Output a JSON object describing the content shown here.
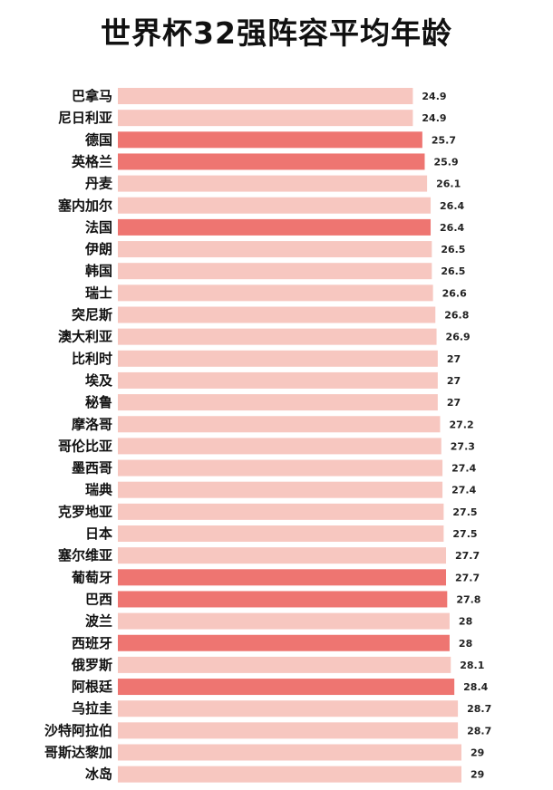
{
  "chart_data": {
    "type": "bar",
    "orientation": "horizontal",
    "title": "世界杯32强阵容平均年龄",
    "xlabel": "",
    "ylabel": "",
    "xlim": [
      0,
      29
    ],
    "grid": false,
    "colors": {
      "normal": "#f7c7c0",
      "highlight": "#ee7571"
    },
    "categories": [
      "巴拿马",
      "尼日利亚",
      "德国",
      "英格兰",
      "丹麦",
      "塞内加尔",
      "法国",
      "伊朗",
      "韩国",
      "瑞士",
      "突尼斯",
      "澳大利亚",
      "比利时",
      "埃及",
      "秘鲁",
      "摩洛哥",
      "哥伦比亚",
      "墨西哥",
      "瑞典",
      "克罗地亚",
      "日本",
      "塞尔维亚",
      "葡萄牙",
      "巴西",
      "波兰",
      "西班牙",
      "俄罗斯",
      "阿根廷",
      "乌拉圭",
      "沙特阿拉伯",
      "哥斯达黎加",
      "冰岛"
    ],
    "values": [
      24.9,
      24.9,
      25.7,
      25.9,
      26.1,
      26.4,
      26.4,
      26.5,
      26.5,
      26.6,
      26.8,
      26.9,
      27,
      27,
      27,
      27.2,
      27.3,
      27.4,
      27.4,
      27.5,
      27.5,
      27.7,
      27.7,
      27.8,
      28,
      28,
      28.1,
      28.4,
      28.7,
      28.7,
      29,
      29
    ],
    "value_labels": [
      "24.9",
      "24.9",
      "25.7",
      "25.9",
      "26.1",
      "26.4",
      "26.4",
      "26.5",
      "26.5",
      "26.6",
      "26.8",
      "26.9",
      "27",
      "27",
      "27",
      "27.2",
      "27.3",
      "27.4",
      "27.4",
      "27.5",
      "27.5",
      "27.7",
      "27.7",
      "27.8",
      "28",
      "28",
      "28.1",
      "28.4",
      "28.7",
      "28.7",
      "29",
      "29"
    ],
    "highlighted": [
      "德国",
      "英格兰",
      "法国",
      "葡萄牙",
      "巴西",
      "西班牙",
      "阿根廷"
    ]
  }
}
